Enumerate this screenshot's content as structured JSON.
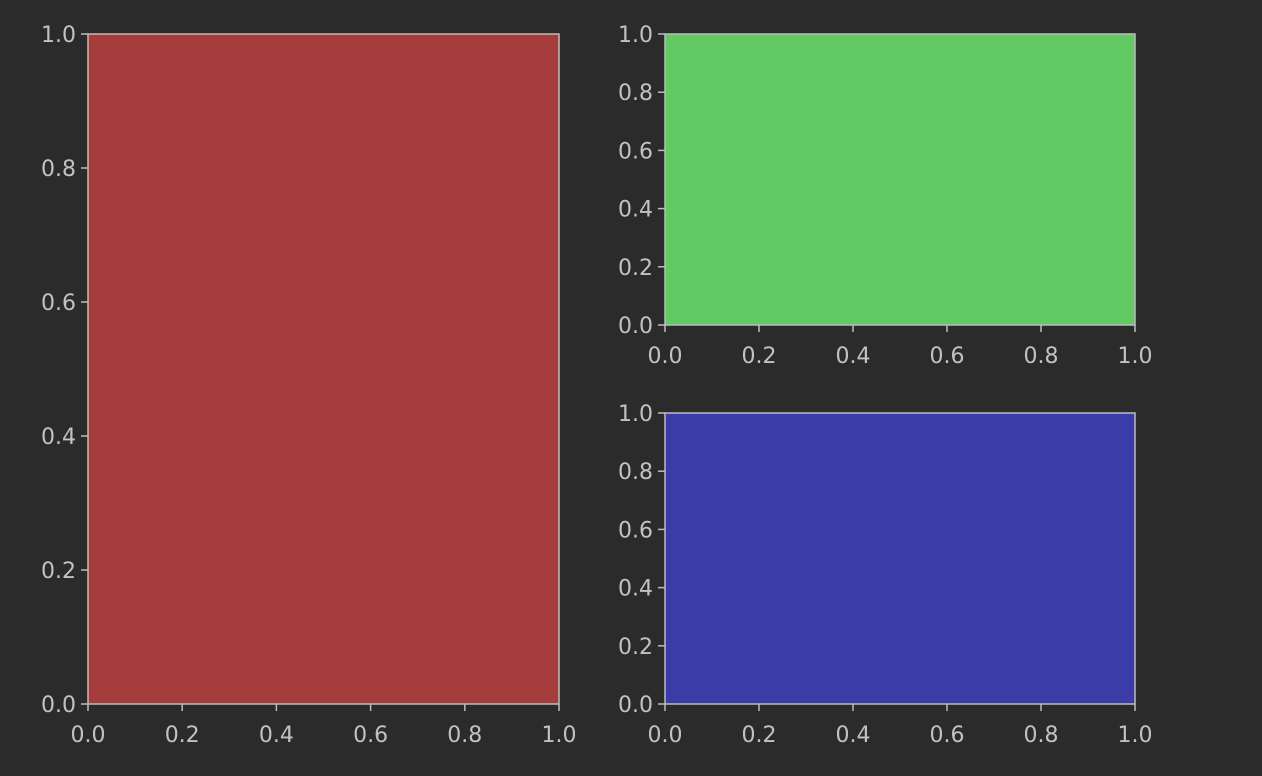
{
  "figure": {
    "background": "#2b2b2b",
    "axis_color": "#bdbdbd",
    "tick_label_color": "#c2c2c2"
  },
  "chart_data": [
    {
      "type": "area",
      "panel": "left",
      "fill_color": "#a63d3d",
      "xlim": [
        0,
        1
      ],
      "ylim": [
        0,
        1
      ],
      "x_ticks": [
        "0.0",
        "0.2",
        "0.4",
        "0.6",
        "0.8",
        "1.0"
      ],
      "y_ticks": [
        "0.0",
        "0.2",
        "0.4",
        "0.6",
        "0.8",
        "1.0"
      ],
      "grid": false
    },
    {
      "type": "area",
      "panel": "top-right",
      "fill_color": "#63c963",
      "xlim": [
        0,
        1
      ],
      "ylim": [
        0,
        1
      ],
      "x_ticks": [
        "0.0",
        "0.2",
        "0.4",
        "0.6",
        "0.8",
        "1.0"
      ],
      "y_ticks": [
        "0.0",
        "0.2",
        "0.4",
        "0.6",
        "0.8",
        "1.0"
      ],
      "grid": false
    },
    {
      "type": "area",
      "panel": "bottom-right",
      "fill_color": "#3c3ca8",
      "xlim": [
        0,
        1
      ],
      "ylim": [
        0,
        1
      ],
      "x_ticks": [
        "0.0",
        "0.2",
        "0.4",
        "0.6",
        "0.8",
        "1.0"
      ],
      "y_ticks": [
        "0.0",
        "0.2",
        "0.4",
        "0.6",
        "0.8",
        "1.0"
      ],
      "grid": false
    }
  ]
}
